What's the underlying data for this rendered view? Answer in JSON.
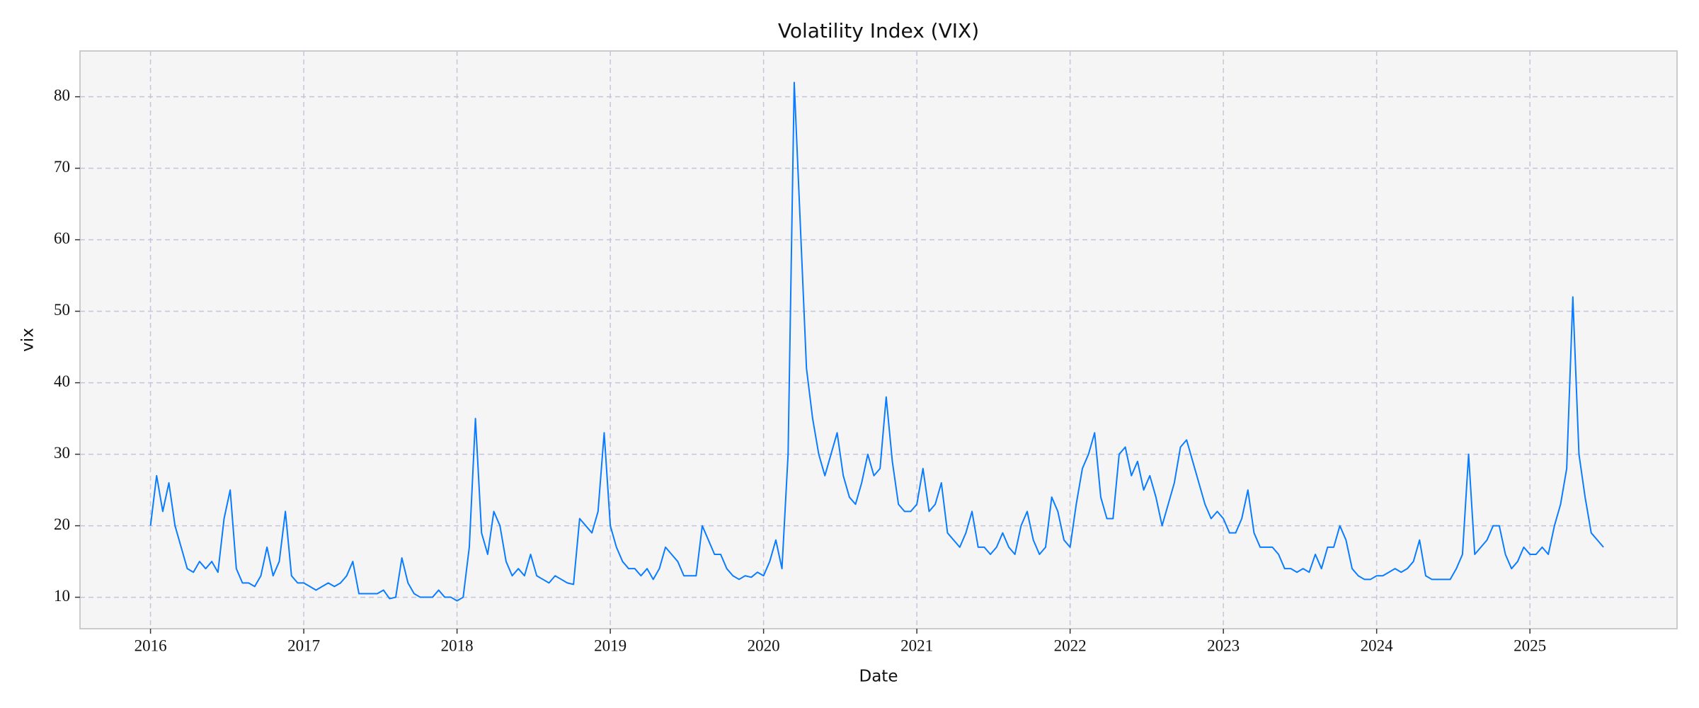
{
  "chart_data": {
    "type": "line",
    "title": "Volatility Index (VIX)",
    "x_label": "Date",
    "y_label": "vix",
    "color": "#0a7cff",
    "grid": true,
    "xlim": [
      2015.54,
      2025.96
    ],
    "xticks": [
      2016,
      2017,
      2018,
      2019,
      2020,
      2021,
      2022,
      2023,
      2024,
      2025
    ],
    "ylim": [
      5.6,
      86.4
    ],
    "yticks": [
      10,
      20,
      30,
      40,
      50,
      60,
      70,
      80
    ],
    "x": [
      2016.0,
      2016.04,
      2016.08,
      2016.12,
      2016.16,
      2016.2,
      2016.24,
      2016.28,
      2016.32,
      2016.36,
      2016.4,
      2016.44,
      2016.48,
      2016.52,
      2016.56,
      2016.6,
      2016.64,
      2016.68,
      2016.72,
      2016.76,
      2016.8,
      2016.84,
      2016.88,
      2016.92,
      2016.96,
      2017.0,
      2017.04,
      2017.08,
      2017.12,
      2017.16,
      2017.2,
      2017.24,
      2017.28,
      2017.32,
      2017.36,
      2017.4,
      2017.44,
      2017.48,
      2017.52,
      2017.56,
      2017.6,
      2017.64,
      2017.68,
      2017.72,
      2017.76,
      2017.8,
      2017.84,
      2017.88,
      2017.92,
      2017.96,
      2018.0,
      2018.04,
      2018.08,
      2018.12,
      2018.16,
      2018.2,
      2018.24,
      2018.28,
      2018.32,
      2018.36,
      2018.4,
      2018.44,
      2018.48,
      2018.52,
      2018.56,
      2018.6,
      2018.64,
      2018.68,
      2018.72,
      2018.76,
      2018.8,
      2018.84,
      2018.88,
      2018.92,
      2018.96,
      2019.0,
      2019.04,
      2019.08,
      2019.12,
      2019.16,
      2019.2,
      2019.24,
      2019.28,
      2019.32,
      2019.36,
      2019.4,
      2019.44,
      2019.48,
      2019.52,
      2019.56,
      2019.6,
      2019.64,
      2019.68,
      2019.72,
      2019.76,
      2019.8,
      2019.84,
      2019.88,
      2019.92,
      2019.96,
      2020.0,
      2020.04,
      2020.08,
      2020.12,
      2020.16,
      2020.2,
      2020.24,
      2020.28,
      2020.32,
      2020.36,
      2020.4,
      2020.44,
      2020.48,
      2020.52,
      2020.56,
      2020.6,
      2020.64,
      2020.68,
      2020.72,
      2020.76,
      2020.8,
      2020.84,
      2020.88,
      2020.92,
      2020.96,
      2021.0,
      2021.04,
      2021.08,
      2021.12,
      2021.16,
      2021.2,
      2021.24,
      2021.28,
      2021.32,
      2021.36,
      2021.4,
      2021.44,
      2021.48,
      2021.52,
      2021.56,
      2021.6,
      2021.64,
      2021.68,
      2021.72,
      2021.76,
      2021.8,
      2021.84,
      2021.88,
      2021.92,
      2021.96,
      2022.0,
      2022.04,
      2022.08,
      2022.12,
      2022.16,
      2022.2,
      2022.24,
      2022.28,
      2022.32,
      2022.36,
      2022.4,
      2022.44,
      2022.48,
      2022.52,
      2022.56,
      2022.6,
      2022.64,
      2022.68,
      2022.72,
      2022.76,
      2022.8,
      2022.84,
      2022.88,
      2022.92,
      2022.96,
      2023.0,
      2023.04,
      2023.08,
      2023.12,
      2023.16,
      2023.2,
      2023.24,
      2023.28,
      2023.32,
      2023.36,
      2023.4,
      2023.44,
      2023.48,
      2023.52,
      2023.56,
      2023.6,
      2023.64,
      2023.68,
      2023.72,
      2023.76,
      2023.8,
      2023.84,
      2023.88,
      2023.92,
      2023.96,
      2024.0,
      2024.04,
      2024.08,
      2024.12,
      2024.16,
      2024.2,
      2024.24,
      2024.28,
      2024.32,
      2024.36,
      2024.4,
      2024.44,
      2024.48,
      2024.52,
      2024.56,
      2024.6,
      2024.64,
      2024.68,
      2024.72,
      2024.76,
      2024.8,
      2024.84,
      2024.88,
      2024.92,
      2024.96,
      2025.0,
      2025.04,
      2025.08,
      2025.12,
      2025.16,
      2025.2,
      2025.24,
      2025.28,
      2025.32,
      2025.36,
      2025.4,
      2025.44,
      2025.48
    ],
    "values": [
      20,
      27,
      22,
      26,
      20,
      17,
      14,
      13.5,
      15,
      14,
      15,
      13.5,
      21,
      25,
      14,
      12,
      12,
      11.5,
      13,
      17,
      13,
      15,
      22,
      13,
      12,
      12,
      11.5,
      11,
      11.5,
      12,
      11.5,
      12,
      13,
      15,
      10.5,
      10.5,
      10.5,
      10.5,
      11,
      9.8,
      10,
      15.5,
      12,
      10.5,
      10,
      10,
      10,
      11,
      10,
      10,
      9.5,
      10,
      17,
      35,
      19,
      16,
      22,
      20,
      15,
      13,
      14,
      13,
      16,
      13,
      12.5,
      12,
      13,
      12.5,
      12,
      11.8,
      21,
      20,
      19,
      22,
      33,
      20,
      17,
      15,
      14,
      14,
      13,
      14,
      12.5,
      14,
      17,
      16,
      15,
      13,
      13,
      13,
      20,
      18,
      16,
      16,
      14,
      13,
      12.5,
      13,
      12.8,
      13.5,
      13,
      15,
      18,
      14,
      30,
      82,
      62,
      42,
      35,
      30,
      27,
      30,
      33,
      27,
      24,
      23,
      26,
      30,
      27,
      28,
      38,
      29,
      23,
      22,
      22,
      23,
      28,
      22,
      23,
      26,
      19,
      18,
      17,
      19,
      22,
      17,
      17,
      16,
      17,
      19,
      17,
      16,
      20,
      22,
      18,
      16,
      17,
      24,
      22,
      18,
      17,
      23,
      28,
      30,
      33,
      24,
      21,
      21,
      30,
      31,
      27,
      29,
      25,
      27,
      24,
      20,
      23,
      26,
      31,
      32,
      29,
      26,
      23,
      21,
      22,
      21,
      19,
      19,
      21,
      25,
      19,
      17,
      17,
      17,
      16,
      14,
      14,
      13.5,
      14,
      13.5,
      16,
      14,
      17,
      17,
      20,
      18,
      14,
      13,
      12.5,
      12.5,
      13,
      13,
      13.5,
      14,
      13.5,
      14,
      15,
      18,
      13,
      12.5,
      12.5,
      12.5,
      12.5,
      14,
      16,
      30,
      16,
      17,
      18,
      20,
      20,
      16,
      14,
      15,
      17,
      16,
      16,
      17,
      16,
      20,
      23,
      28,
      52,
      30,
      24,
      19,
      18,
      17
    ]
  }
}
